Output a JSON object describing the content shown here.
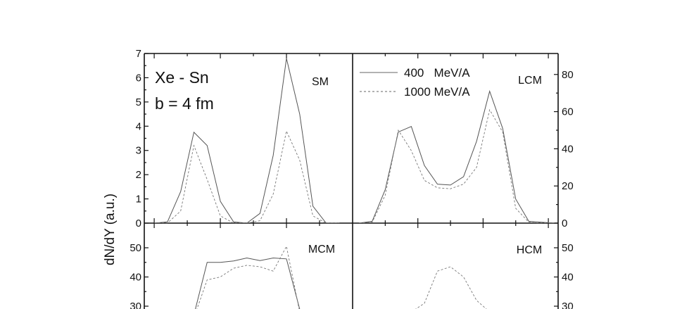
{
  "chart_data": [
    {
      "type": "line",
      "panel": "SM",
      "label": "SM",
      "annotations": [
        "Xe - Sn",
        "b = 4 fm"
      ],
      "ylabel": "dN/dY (a.u.)",
      "ylim": [
        0,
        7
      ],
      "y_ticks": [
        "0",
        "1",
        "2",
        "3",
        "4",
        "5",
        "6",
        "7"
      ],
      "xlim": [
        -3.15,
        0
      ],
      "series": [
        {
          "style": "solid",
          "x": [
            -3.0,
            -2.8,
            -2.6,
            -2.4,
            -2.2,
            -2.0,
            -1.8,
            -1.6,
            -1.4,
            -1.2,
            -1.0,
            -0.8,
            -0.6,
            -0.4,
            -0.2
          ],
          "y": [
            0,
            0.05,
            1.3,
            3.75,
            3.2,
            0.9,
            0.05,
            0,
            0.4,
            2.8,
            6.8,
            4.5,
            0.7,
            0,
            0
          ]
        },
        {
          "style": "dashed",
          "x": [
            -3.0,
            -2.8,
            -2.6,
            -2.4,
            -2.2,
            -2.0,
            -1.8,
            -1.6,
            -1.4,
            -1.2,
            -1.0,
            -0.8,
            -0.6,
            -0.4,
            -0.2
          ],
          "y": [
            0,
            0,
            0.5,
            3.2,
            1.8,
            0.3,
            0,
            0,
            0.1,
            1.2,
            3.8,
            2.6,
            0.3,
            0,
            0
          ]
        }
      ]
    },
    {
      "type": "line",
      "panel": "LCM",
      "label": "LCM",
      "legend": [
        "400   MeV/A",
        "1000 MeV/A"
      ],
      "y2lim": [
        0,
        90
      ],
      "y_ticks": [
        "0",
        "20",
        "40",
        "60",
        "80"
      ],
      "xlim": [
        0,
        3.15
      ],
      "series": [
        {
          "style": "solid",
          "x": [
            0.1,
            0.3,
            0.5,
            0.7,
            0.9,
            1.1,
            1.3,
            1.5,
            1.7,
            1.9,
            2.1,
            2.3,
            2.5,
            2.7,
            2.9,
            3.1
          ],
          "y": [
            0,
            1,
            18,
            49,
            52,
            31,
            21,
            20.5,
            25,
            44,
            71,
            51,
            13,
            1,
            0.5,
            0
          ]
        },
        {
          "style": "dashed",
          "x": [
            0.1,
            0.3,
            0.5,
            0.7,
            0.9,
            1.1,
            1.3,
            1.5,
            1.7,
            1.9,
            2.1,
            2.3,
            2.5,
            2.7,
            2.9,
            3.1
          ],
          "y": [
            0,
            0.5,
            15,
            50,
            39,
            23,
            19,
            18.5,
            21,
            30,
            61,
            49,
            8,
            0.5,
            0,
            0
          ]
        }
      ]
    },
    {
      "type": "line",
      "panel": "MCM",
      "label": "MCM",
      "ylim": [
        30,
        50
      ],
      "y_ticks": [
        "30",
        "40",
        "50"
      ],
      "xlim": [
        -3.15,
        0
      ],
      "series": [
        {
          "style": "solid",
          "x": [
            -2.4,
            -2.2,
            -2.0,
            -1.8,
            -1.6,
            -1.4,
            -1.2,
            -1.0,
            -0.8
          ],
          "y": [
            27,
            45,
            45,
            45.5,
            46.5,
            45.6,
            46.5,
            46.2,
            29
          ]
        },
        {
          "style": "dashed",
          "x": [
            -2.4,
            -2.2,
            -2.0,
            -1.8,
            -1.6,
            -1.4,
            -1.2,
            -1.0,
            -0.8
          ],
          "y": [
            26,
            39,
            40,
            43,
            44,
            43.5,
            42,
            50.5,
            28
          ]
        }
      ]
    },
    {
      "type": "line",
      "panel": "HCM",
      "label": "HCM",
      "y2lim": [
        30,
        50
      ],
      "y_ticks": [
        "30",
        "40",
        "50"
      ],
      "xlim": [
        0,
        3.15
      ],
      "series": [
        {
          "style": "dashed",
          "x": [
            0.9,
            1.1,
            1.3,
            1.5,
            1.7,
            1.9,
            2.1
          ],
          "y": [
            28,
            31,
            42,
            43.5,
            40,
            32,
            28
          ]
        }
      ]
    }
  ]
}
